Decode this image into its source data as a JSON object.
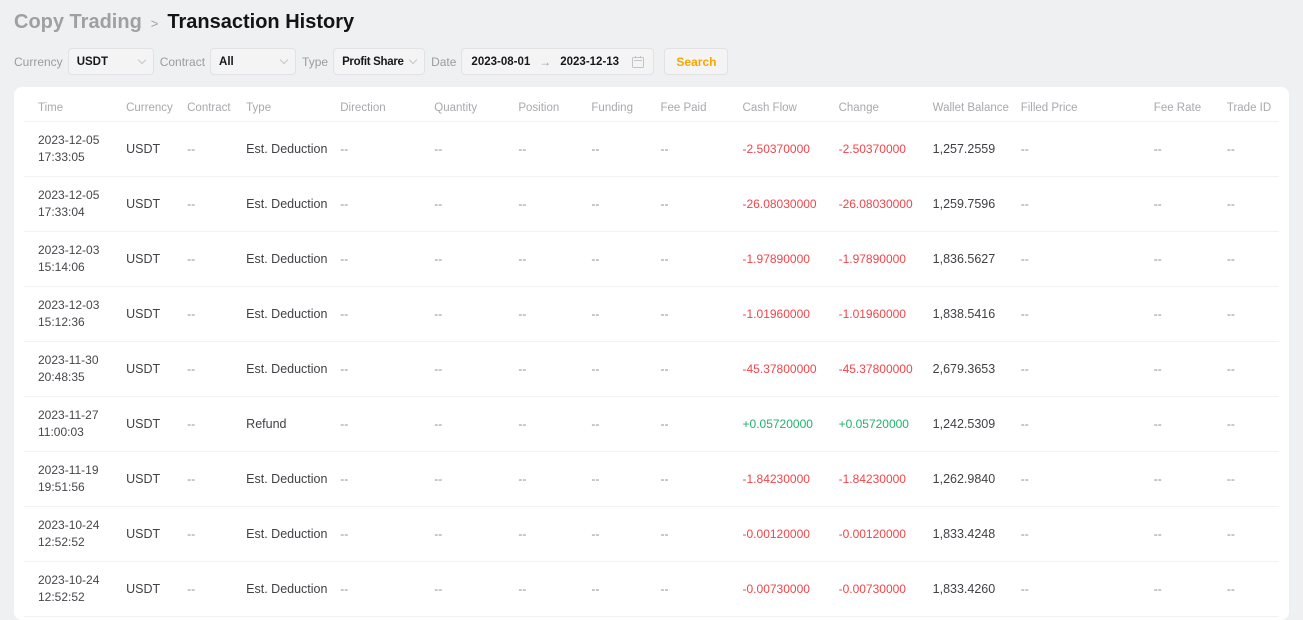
{
  "breadcrumb": {
    "parent": "Copy Trading",
    "separator": ">",
    "current": "Transaction History"
  },
  "filters": {
    "currency": {
      "label": "Currency",
      "value": "USDT"
    },
    "contract": {
      "label": "Contract",
      "value": "All"
    },
    "type": {
      "label": "Type",
      "value": "Profit Share"
    },
    "date": {
      "label": "Date",
      "from": "2023-08-01",
      "to": "2023-12-13",
      "arrow": "→"
    },
    "search_label": "Search"
  },
  "colors": {
    "accent": "#f7a600",
    "negative": "#ef454a",
    "positive": "#20b26c"
  },
  "table": {
    "columns": [
      "Time",
      "Currency",
      "Contract",
      "Type",
      "Direction",
      "Quantity",
      "Position",
      "Funding",
      "Fee Paid",
      "Cash Flow",
      "Change",
      "Wallet Balance",
      "Filled Price",
      "Fee Rate",
      "Trade ID"
    ],
    "rows": [
      {
        "date": "2023-12-05",
        "time": "17:33:05",
        "currency": "USDT",
        "contract": "--",
        "type": "Est. Deduction",
        "direction": "--",
        "quantity": "--",
        "position": "--",
        "funding": "--",
        "fee_paid": "--",
        "cash_flow": "-2.50370000",
        "change": "-2.50370000",
        "wallet_balance": "1,257.2559",
        "filled_price": "--",
        "fee_rate": "--",
        "trade_id": "--"
      },
      {
        "date": "2023-12-05",
        "time": "17:33:04",
        "currency": "USDT",
        "contract": "--",
        "type": "Est. Deduction",
        "direction": "--",
        "quantity": "--",
        "position": "--",
        "funding": "--",
        "fee_paid": "--",
        "cash_flow": "-26.08030000",
        "change": "-26.08030000",
        "wallet_balance": "1,259.7596",
        "filled_price": "--",
        "fee_rate": "--",
        "trade_id": "--"
      },
      {
        "date": "2023-12-03",
        "time": "15:14:06",
        "currency": "USDT",
        "contract": "--",
        "type": "Est. Deduction",
        "direction": "--",
        "quantity": "--",
        "position": "--",
        "funding": "--",
        "fee_paid": "--",
        "cash_flow": "-1.97890000",
        "change": "-1.97890000",
        "wallet_balance": "1,836.5627",
        "filled_price": "--",
        "fee_rate": "--",
        "trade_id": "--"
      },
      {
        "date": "2023-12-03",
        "time": "15:12:36",
        "currency": "USDT",
        "contract": "--",
        "type": "Est. Deduction",
        "direction": "--",
        "quantity": "--",
        "position": "--",
        "funding": "--",
        "fee_paid": "--",
        "cash_flow": "-1.01960000",
        "change": "-1.01960000",
        "wallet_balance": "1,838.5416",
        "filled_price": "--",
        "fee_rate": "--",
        "trade_id": "--"
      },
      {
        "date": "2023-11-30",
        "time": "20:48:35",
        "currency": "USDT",
        "contract": "--",
        "type": "Est. Deduction",
        "direction": "--",
        "quantity": "--",
        "position": "--",
        "funding": "--",
        "fee_paid": "--",
        "cash_flow": "-45.37800000",
        "change": "-45.37800000",
        "wallet_balance": "2,679.3653",
        "filled_price": "--",
        "fee_rate": "--",
        "trade_id": "--"
      },
      {
        "date": "2023-11-27",
        "time": "11:00:03",
        "currency": "USDT",
        "contract": "--",
        "type": "Refund",
        "direction": "--",
        "quantity": "--",
        "position": "--",
        "funding": "--",
        "fee_paid": "--",
        "cash_flow": "+0.05720000",
        "change": "+0.05720000",
        "wallet_balance": "1,242.5309",
        "filled_price": "--",
        "fee_rate": "--",
        "trade_id": "--"
      },
      {
        "date": "2023-11-19",
        "time": "19:51:56",
        "currency": "USDT",
        "contract": "--",
        "type": "Est. Deduction",
        "direction": "--",
        "quantity": "--",
        "position": "--",
        "funding": "--",
        "fee_paid": "--",
        "cash_flow": "-1.84230000",
        "change": "-1.84230000",
        "wallet_balance": "1,262.9840",
        "filled_price": "--",
        "fee_rate": "--",
        "trade_id": "--"
      },
      {
        "date": "2023-10-24",
        "time": "12:52:52",
        "currency": "USDT",
        "contract": "--",
        "type": "Est. Deduction",
        "direction": "--",
        "quantity": "--",
        "position": "--",
        "funding": "--",
        "fee_paid": "--",
        "cash_flow": "-0.00120000",
        "change": "-0.00120000",
        "wallet_balance": "1,833.4248",
        "filled_price": "--",
        "fee_rate": "--",
        "trade_id": "--"
      },
      {
        "date": "2023-10-24",
        "time": "12:52:52",
        "currency": "USDT",
        "contract": "--",
        "type": "Est. Deduction",
        "direction": "--",
        "quantity": "--",
        "position": "--",
        "funding": "--",
        "fee_paid": "--",
        "cash_flow": "-0.00730000",
        "change": "-0.00730000",
        "wallet_balance": "1,833.4260",
        "filled_price": "--",
        "fee_rate": "--",
        "trade_id": "--"
      }
    ]
  }
}
